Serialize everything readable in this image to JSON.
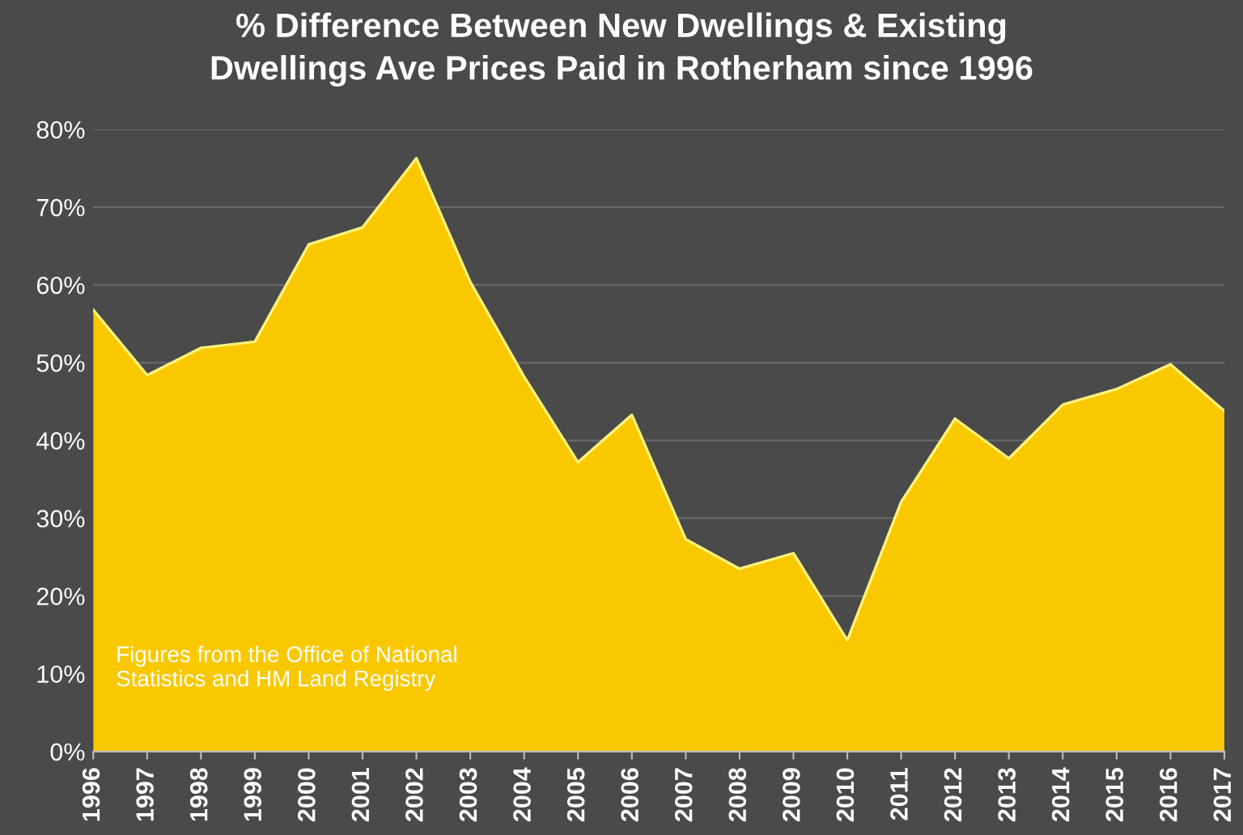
{
  "chart_data": {
    "type": "area",
    "title": "% Difference Between New Dwellings & Existing\nDwellings Ave Prices Paid in Rotherham since 1996",
    "categories": [
      "1996",
      "1997",
      "1998",
      "1999",
      "2000",
      "2001",
      "2002",
      "2003",
      "2004",
      "2005",
      "2006",
      "2007",
      "2008",
      "2009",
      "2010",
      "2011",
      "2012",
      "2013",
      "2014",
      "2015",
      "2016",
      "2017"
    ],
    "values": [
      56.8,
      48.4,
      51.9,
      52.7,
      65.2,
      67.4,
      76.3,
      60.4,
      48.2,
      37.2,
      43.3,
      27.3,
      23.5,
      25.5,
      14.3,
      32.1,
      42.8,
      37.7,
      44.6,
      46.6,
      49.8,
      43.8
    ],
    "color": "#f9c800",
    "ylim": [
      0,
      80
    ],
    "yticks": [
      {
        "value": 0,
        "label": "0%"
      },
      {
        "value": 10,
        "label": "10%"
      },
      {
        "value": 20,
        "label": "20%"
      },
      {
        "value": 30,
        "label": "30%"
      },
      {
        "value": 40,
        "label": "40%"
      },
      {
        "value": 50,
        "label": "50%"
      },
      {
        "value": 60,
        "label": "60%"
      },
      {
        "value": 70,
        "label": "70%"
      },
      {
        "value": 80,
        "label": "80%"
      }
    ],
    "grid": "y",
    "annotations": [
      "Figures from the Office of National\nStatistics and HM Land Registry"
    ]
  }
}
